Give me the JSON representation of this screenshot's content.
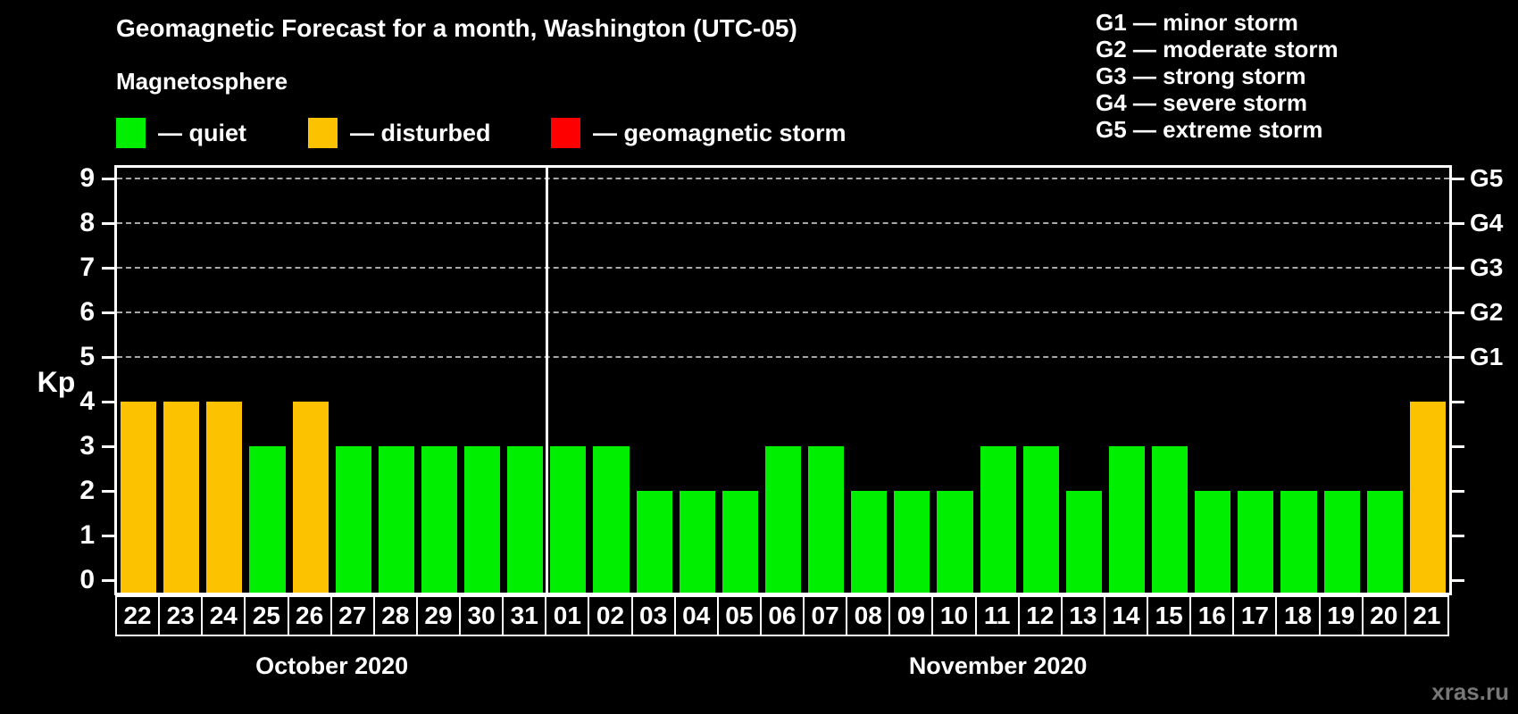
{
  "title": "Geomagnetic Forecast for a month, Washington (UTC-05)",
  "subtitle": "Magnetosphere",
  "legend": {
    "items": [
      {
        "name": "quiet",
        "label": "— quiet",
        "color": "#00ee00"
      },
      {
        "name": "disturbed",
        "label": "— disturbed",
        "color": "#fcc200"
      },
      {
        "name": "storm",
        "label": "— geomagnetic storm",
        "color": "#ff0000"
      }
    ]
  },
  "g_scale_legend": [
    "G1 — minor storm",
    "G2 — moderate storm",
    "G3 — strong storm",
    "G4 — severe storm",
    "G5 — extreme storm"
  ],
  "watermark": "xras.ru",
  "chart_data": {
    "type": "bar",
    "title": "Geomagnetic Forecast for a month, Washington (UTC-05)",
    "ylabel": "Kp",
    "ylim": [
      0,
      9
    ],
    "yticks": [
      0,
      1,
      2,
      3,
      4,
      5,
      6,
      7,
      8,
      9
    ],
    "gridline_levels": [
      5,
      6,
      7,
      8,
      9
    ],
    "grid": "dashed",
    "right_axis_labels": [
      {
        "kp": 5,
        "label": "G1"
      },
      {
        "kp": 6,
        "label": "G2"
      },
      {
        "kp": 7,
        "label": "G3"
      },
      {
        "kp": 8,
        "label": "G4"
      },
      {
        "kp": 9,
        "label": "G5"
      }
    ],
    "colors": {
      "quiet": "#00ee00",
      "disturbed": "#fcc200",
      "storm": "#ff0000"
    },
    "groups": [
      {
        "label": "October 2020",
        "count": 10
      },
      {
        "label": "November 2020",
        "count": 21
      }
    ],
    "bars": [
      {
        "day": "22",
        "kp": 4,
        "state": "disturbed"
      },
      {
        "day": "23",
        "kp": 4,
        "state": "disturbed"
      },
      {
        "day": "24",
        "kp": 4,
        "state": "disturbed"
      },
      {
        "day": "25",
        "kp": 3,
        "state": "quiet"
      },
      {
        "day": "26",
        "kp": 4,
        "state": "disturbed"
      },
      {
        "day": "27",
        "kp": 3,
        "state": "quiet"
      },
      {
        "day": "28",
        "kp": 3,
        "state": "quiet"
      },
      {
        "day": "29",
        "kp": 3,
        "state": "quiet"
      },
      {
        "day": "30",
        "kp": 3,
        "state": "quiet"
      },
      {
        "day": "31",
        "kp": 3,
        "state": "quiet"
      },
      {
        "day": "01",
        "kp": 3,
        "state": "quiet"
      },
      {
        "day": "02",
        "kp": 3,
        "state": "quiet"
      },
      {
        "day": "03",
        "kp": 2,
        "state": "quiet"
      },
      {
        "day": "04",
        "kp": 2,
        "state": "quiet"
      },
      {
        "day": "05",
        "kp": 2,
        "state": "quiet"
      },
      {
        "day": "06",
        "kp": 3,
        "state": "quiet"
      },
      {
        "day": "07",
        "kp": 3,
        "state": "quiet"
      },
      {
        "day": "08",
        "kp": 2,
        "state": "quiet"
      },
      {
        "day": "09",
        "kp": 2,
        "state": "quiet"
      },
      {
        "day": "10",
        "kp": 2,
        "state": "quiet"
      },
      {
        "day": "11",
        "kp": 3,
        "state": "quiet"
      },
      {
        "day": "12",
        "kp": 3,
        "state": "quiet"
      },
      {
        "day": "13",
        "kp": 2,
        "state": "quiet"
      },
      {
        "day": "14",
        "kp": 3,
        "state": "quiet"
      },
      {
        "day": "15",
        "kp": 3,
        "state": "quiet"
      },
      {
        "day": "16",
        "kp": 2,
        "state": "quiet"
      },
      {
        "day": "17",
        "kp": 2,
        "state": "quiet"
      },
      {
        "day": "18",
        "kp": 2,
        "state": "quiet"
      },
      {
        "day": "19",
        "kp": 2,
        "state": "quiet"
      },
      {
        "day": "20",
        "kp": 2,
        "state": "quiet"
      },
      {
        "day": "21",
        "kp": 4,
        "state": "disturbed"
      }
    ]
  }
}
